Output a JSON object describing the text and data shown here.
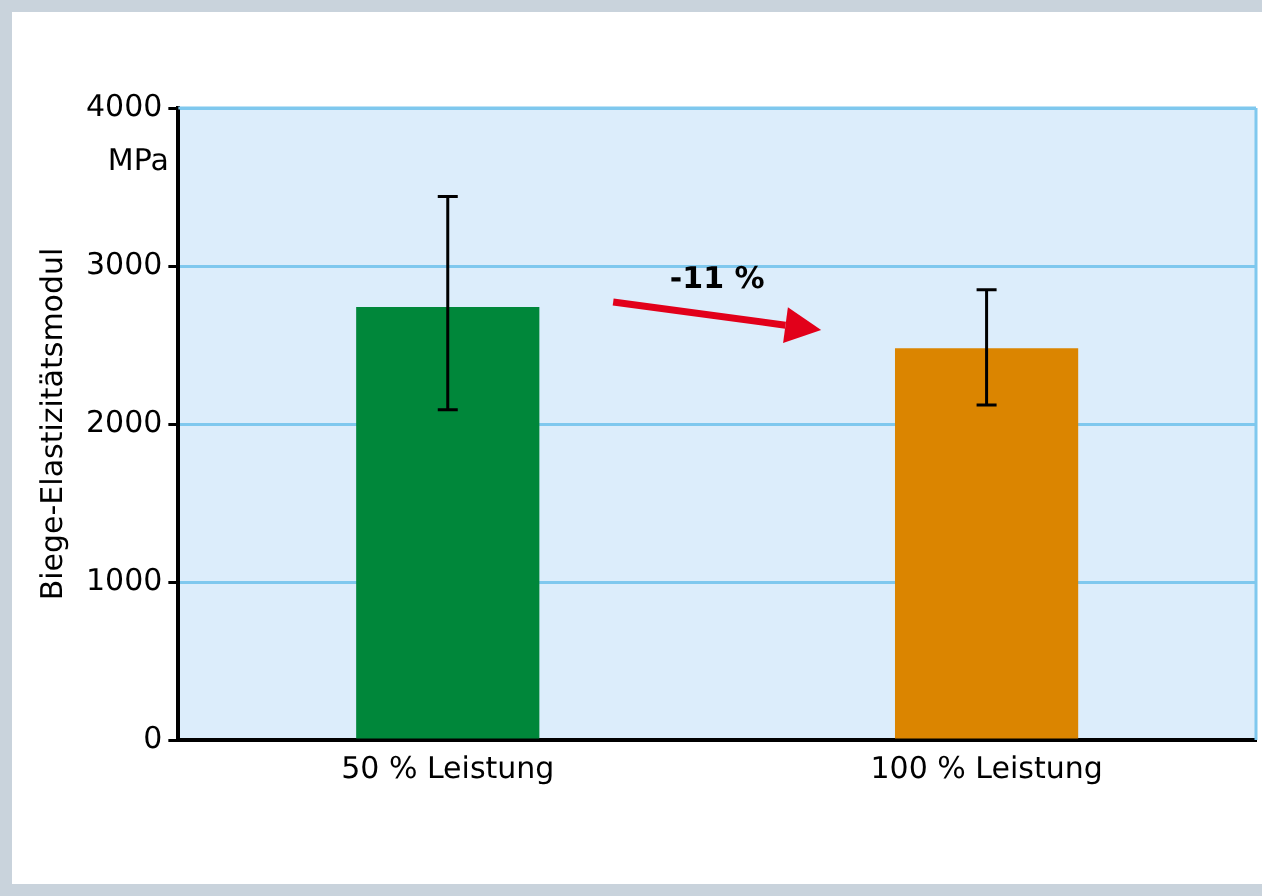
{
  "chart_data": {
    "type": "bar",
    "ylabel": "Biege-Elastizitätsmodul",
    "categories": [
      "50 % Leistung",
      "100 % Leistung"
    ],
    "values": [
      2740,
      2480
    ],
    "colors": [
      "#00873a",
      "#db8500"
    ],
    "errors": [
      [
        2090,
        3440
      ],
      [
        2120,
        2850
      ]
    ],
    "ylim": [
      0,
      4000
    ],
    "yticks": [
      0,
      1000,
      2000,
      3000,
      4000
    ],
    "grid": "y",
    "legend": false,
    "annotations": [
      "MPa",
      "-11 %"
    ]
  }
}
